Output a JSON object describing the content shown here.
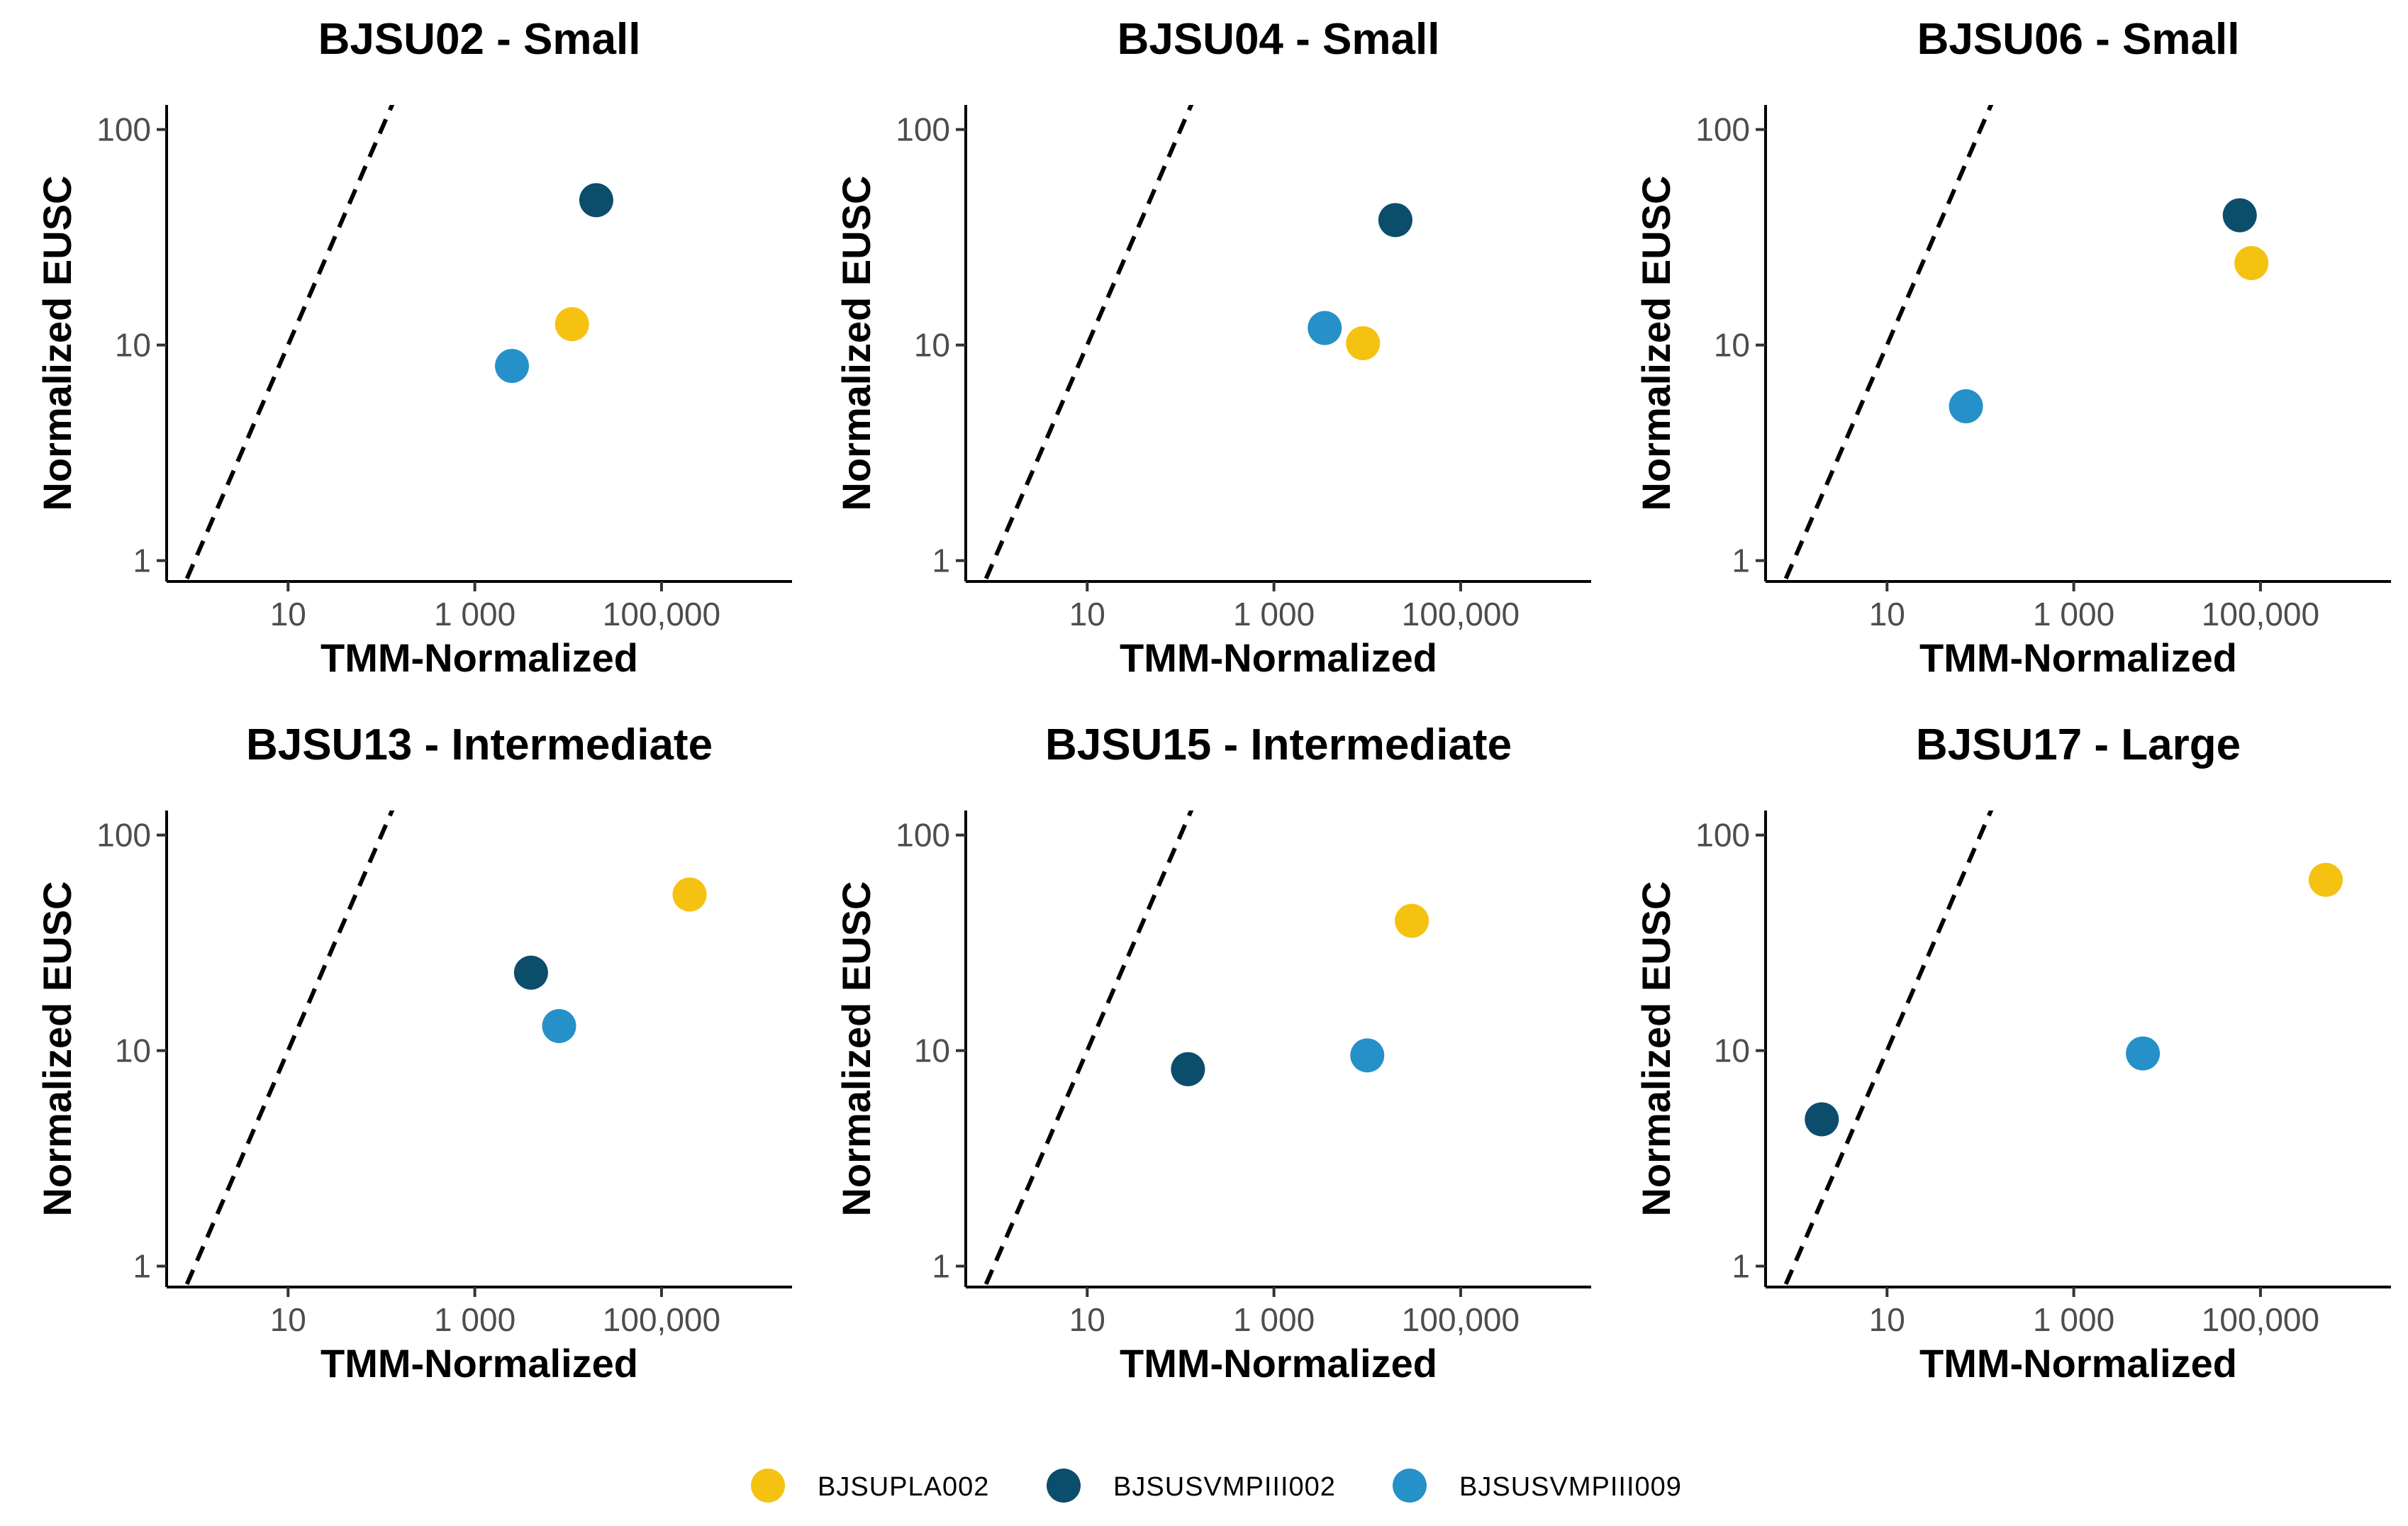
{
  "chart_data": [
    {
      "type": "scatter",
      "title": "BJSU02 - Small",
      "xlabel": "TMM-Normalized",
      "ylabel": "Normalized EUSC",
      "x_scale": "log10",
      "y_scale": "log10",
      "xlim": [
        0.5,
        2500000
      ],
      "ylim": [
        0.8,
        130
      ],
      "x_ticks": [
        {
          "value": 10,
          "label": "10"
        },
        {
          "value": 1000,
          "label": "1 000"
        },
        {
          "value": 100000,
          "label": "100,000"
        }
      ],
      "y_ticks": [
        {
          "value": 1,
          "label": "1"
        },
        {
          "value": 10,
          "label": "10"
        },
        {
          "value": 100,
          "label": "100"
        }
      ],
      "reference_line": "y = x (dashed)",
      "points": [
        {
          "series": "BJSUPLA002",
          "x": 11000,
          "y": 12.5
        },
        {
          "series": "BJSUSVMPIII002",
          "x": 20000,
          "y": 47
        },
        {
          "series": "BJSUSVMPIII009",
          "x": 2500,
          "y": 8
        }
      ]
    },
    {
      "type": "scatter",
      "title": "BJSU04 - Small",
      "xlabel": "TMM-Normalized",
      "ylabel": "Normalized EUSC",
      "x_scale": "log10",
      "y_scale": "log10",
      "xlim": [
        0.5,
        2500000
      ],
      "ylim": [
        0.8,
        130
      ],
      "x_ticks": [
        {
          "value": 10,
          "label": "10"
        },
        {
          "value": 1000,
          "label": "1 000"
        },
        {
          "value": 100000,
          "label": "100,000"
        }
      ],
      "y_ticks": [
        {
          "value": 1,
          "label": "1"
        },
        {
          "value": 10,
          "label": "10"
        },
        {
          "value": 100,
          "label": "100"
        }
      ],
      "reference_line": "y = x (dashed)",
      "points": [
        {
          "series": "BJSUPLA002",
          "x": 9000,
          "y": 10.2
        },
        {
          "series": "BJSUSVMPIII002",
          "x": 20000,
          "y": 38
        },
        {
          "series": "BJSUSVMPIII009",
          "x": 3500,
          "y": 12
        }
      ]
    },
    {
      "type": "scatter",
      "title": "BJSU06 - Small",
      "xlabel": "TMM-Normalized",
      "ylabel": "Normalized EUSC",
      "x_scale": "log10",
      "y_scale": "log10",
      "xlim": [
        0.5,
        2500000
      ],
      "ylim": [
        0.8,
        130
      ],
      "x_ticks": [
        {
          "value": 10,
          "label": "10"
        },
        {
          "value": 1000,
          "label": "1 000"
        },
        {
          "value": 100000,
          "label": "100,000"
        }
      ],
      "y_ticks": [
        {
          "value": 1,
          "label": "1"
        },
        {
          "value": 10,
          "label": "10"
        },
        {
          "value": 100,
          "label": "100"
        }
      ],
      "reference_line": "y = x (dashed)",
      "points": [
        {
          "series": "BJSUPLA002",
          "x": 80000,
          "y": 24
        },
        {
          "series": "BJSUSVMPIII002",
          "x": 60000,
          "y": 40
        },
        {
          "series": "BJSUSVMPIII009",
          "x": 70,
          "y": 5.2
        }
      ]
    },
    {
      "type": "scatter",
      "title": "BJSU13 - Intermediate",
      "xlabel": "TMM-Normalized",
      "ylabel": "Normalized EUSC",
      "x_scale": "log10",
      "y_scale": "log10",
      "xlim": [
        0.5,
        2500000
      ],
      "ylim": [
        0.8,
        130
      ],
      "x_ticks": [
        {
          "value": 10,
          "label": "10"
        },
        {
          "value": 1000,
          "label": "1 000"
        },
        {
          "value": 100000,
          "label": "100,000"
        }
      ],
      "y_ticks": [
        {
          "value": 1,
          "label": "1"
        },
        {
          "value": 10,
          "label": "10"
        },
        {
          "value": 100,
          "label": "100"
        }
      ],
      "reference_line": "y = x (dashed)",
      "points": [
        {
          "series": "BJSUPLA002",
          "x": 200000,
          "y": 53
        },
        {
          "series": "BJSUSVMPIII002",
          "x": 4000,
          "y": 23
        },
        {
          "series": "BJSUSVMPIII009",
          "x": 8000,
          "y": 13
        }
      ]
    },
    {
      "type": "scatter",
      "title": "BJSU15 - Intermediate",
      "xlabel": "TMM-Normalized",
      "ylabel": "Normalized EUSC",
      "x_scale": "log10",
      "y_scale": "log10",
      "xlim": [
        0.5,
        2500000
      ],
      "ylim": [
        0.8,
        130
      ],
      "x_ticks": [
        {
          "value": 10,
          "label": "10"
        },
        {
          "value": 1000,
          "label": "1 000"
        },
        {
          "value": 100000,
          "label": "100,000"
        }
      ],
      "y_ticks": [
        {
          "value": 1,
          "label": "1"
        },
        {
          "value": 10,
          "label": "10"
        },
        {
          "value": 100,
          "label": "100"
        }
      ],
      "reference_line": "y = x (dashed)",
      "points": [
        {
          "series": "BJSUPLA002",
          "x": 30000,
          "y": 40
        },
        {
          "series": "BJSUSVMPIII002",
          "x": 120,
          "y": 8.2
        },
        {
          "series": "BJSUSVMPIII009",
          "x": 10000,
          "y": 9.5
        }
      ]
    },
    {
      "type": "scatter",
      "title": "BJSU17 - Large",
      "xlabel": "TMM-Normalized",
      "ylabel": "Normalized EUSC",
      "x_scale": "log10",
      "y_scale": "log10",
      "xlim": [
        0.5,
        2500000
      ],
      "ylim": [
        0.8,
        130
      ],
      "x_ticks": [
        {
          "value": 10,
          "label": "10"
        },
        {
          "value": 1000,
          "label": "1 000"
        },
        {
          "value": 100000,
          "label": "100,000"
        }
      ],
      "y_ticks": [
        {
          "value": 1,
          "label": "1"
        },
        {
          "value": 10,
          "label": "10"
        },
        {
          "value": 100,
          "label": "100"
        }
      ],
      "reference_line": "y = x (dashed)",
      "points": [
        {
          "series": "BJSUPLA002",
          "x": 500000,
          "y": 62
        },
        {
          "series": "BJSUSVMPIII002",
          "x": 2,
          "y": 4.8
        },
        {
          "series": "BJSUSVMPIII009",
          "x": 5500,
          "y": 9.7
        }
      ]
    }
  ],
  "legend": {
    "position": "bottom",
    "items": [
      {
        "name": "BJSUPLA002",
        "color": "#F5C211"
      },
      {
        "name": "BJSUSVMPIII002",
        "color": "#0B4D6B"
      },
      {
        "name": "BJSUSVMPIII009",
        "color": "#2690C8"
      }
    ]
  },
  "style": {
    "axis_color": "#000000",
    "reference_line_color": "#000000"
  }
}
